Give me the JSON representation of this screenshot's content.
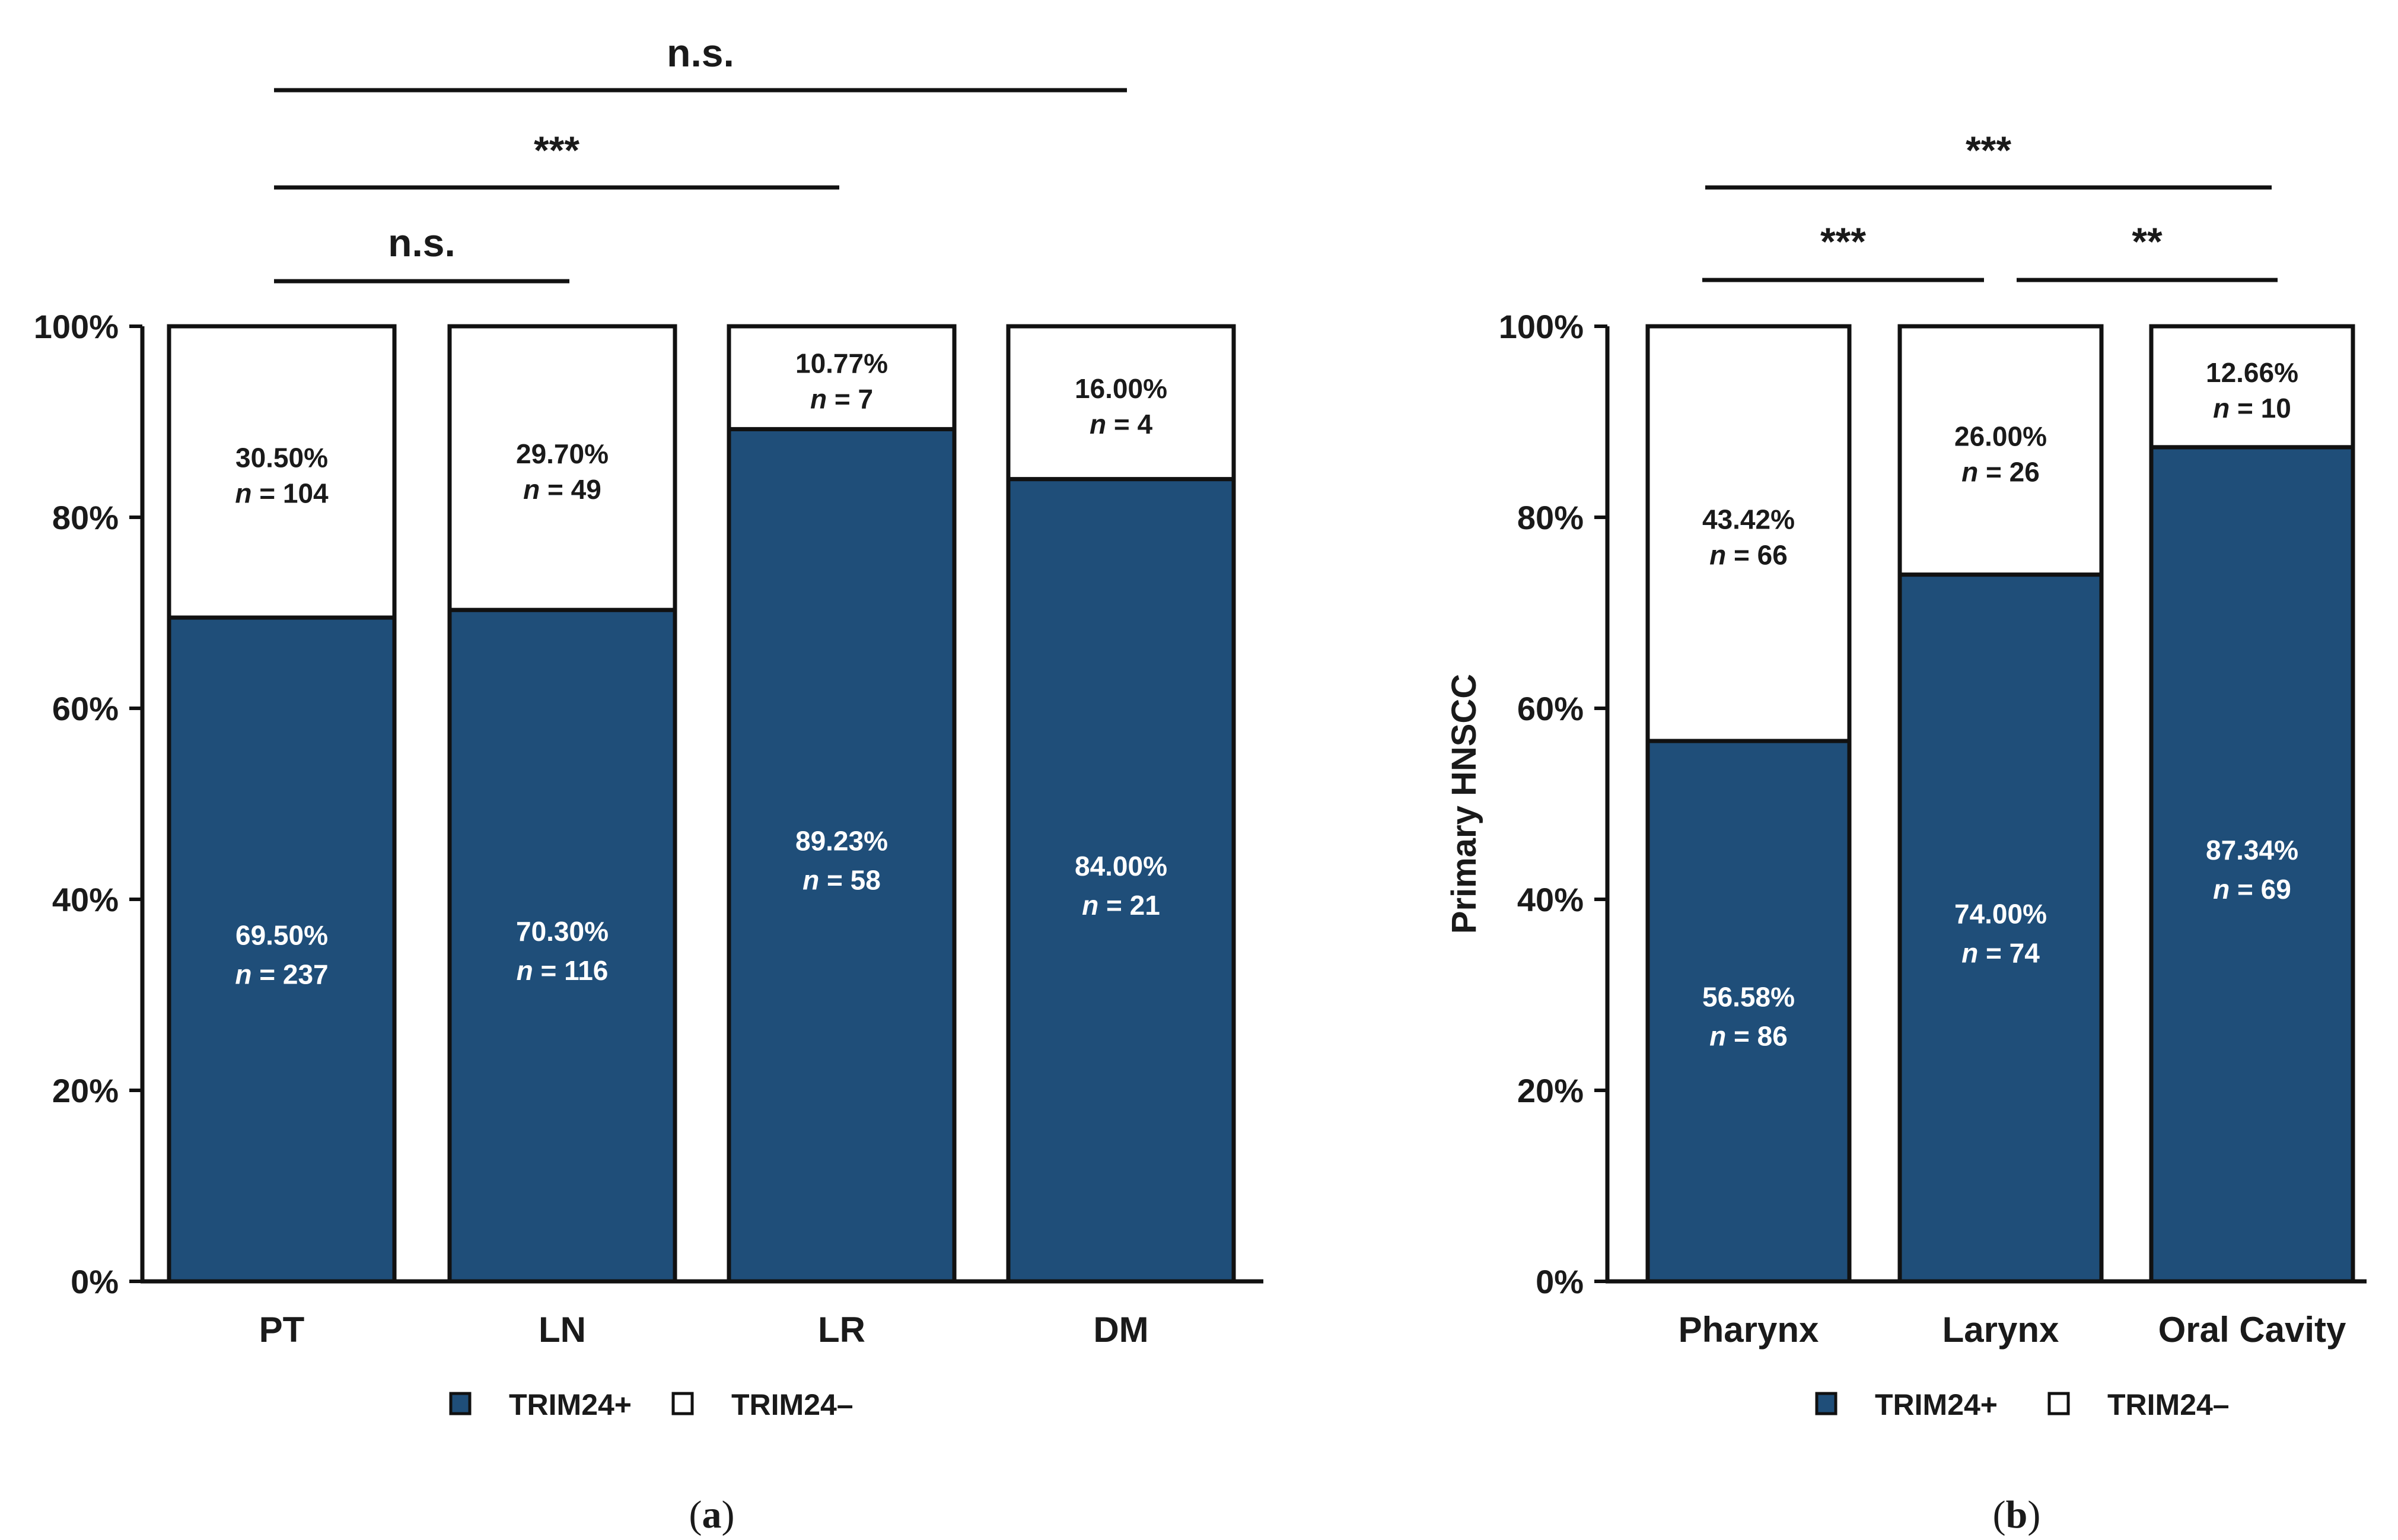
{
  "colors": {
    "positive": "#1f4e79",
    "negative": "#ffffff",
    "stroke": "#111111",
    "text_on_dark": "#ffffff",
    "text_on_light": "#1a1a1a"
  },
  "chart_data": [
    {
      "type": "bar",
      "stacked": true,
      "panel_label": "a",
      "ylabel": "",
      "ylim": [
        0,
        100
      ],
      "yticks": [
        "0%",
        "20%",
        "40%",
        "60%",
        "80%",
        "100%"
      ],
      "categories": [
        "PT",
        "LN",
        "LR",
        "DM"
      ],
      "series": [
        {
          "name": "TRIM24+",
          "values": [
            69.5,
            70.3,
            89.23,
            84.0
          ],
          "pct_labels": [
            "69.50%",
            "70.30%",
            "89.23%",
            "84.00%"
          ],
          "n_labels": [
            "= 237",
            "= 116",
            "= 58",
            "= 21"
          ]
        },
        {
          "name": "TRIM24–",
          "values": [
            30.5,
            29.7,
            10.77,
            16.0
          ],
          "pct_labels": [
            "30.50%",
            "29.70%",
            "10.77%",
            "16.00%"
          ],
          "n_labels": [
            "= 104",
            "= 49",
            "= 7",
            "= 4"
          ]
        }
      ],
      "n_prefix": "n",
      "comparisons": [
        {
          "from": "PT",
          "to": "DM",
          "label": "n.s."
        },
        {
          "from": "PT",
          "to": "LR",
          "label": "***"
        },
        {
          "from": "PT",
          "to": "LN",
          "label": "n.s."
        }
      ],
      "legend": [
        "TRIM24+",
        "TRIM24–"
      ]
    },
    {
      "type": "bar",
      "stacked": true,
      "panel_label": "b",
      "ylabel": "Primary HNSCC",
      "ylim": [
        0,
        100
      ],
      "yticks": [
        "0%",
        "20%",
        "40%",
        "60%",
        "80%",
        "100%"
      ],
      "categories": [
        "Pharynx",
        "Larynx",
        "Oral Cavity"
      ],
      "series": [
        {
          "name": "TRIM24+",
          "values": [
            56.58,
            74.0,
            87.34
          ],
          "pct_labels": [
            "56.58%",
            "74.00%",
            "87.34%"
          ],
          "n_labels": [
            "= 86",
            "= 74",
            "= 69"
          ]
        },
        {
          "name": "TRIM24–",
          "values": [
            43.42,
            26.0,
            12.66
          ],
          "pct_labels": [
            "43.42%",
            "26.00%",
            "12.66%"
          ],
          "n_labels": [
            "= 66",
            "= 26",
            "= 10"
          ]
        }
      ],
      "n_prefix": "n",
      "comparisons": [
        {
          "from": "Pharynx",
          "to": "Oral Cavity",
          "label": "***"
        },
        {
          "from": "Pharynx",
          "to": "Larynx",
          "label": "***"
        },
        {
          "from": "Larynx",
          "to": "Oral Cavity",
          "label": "**"
        }
      ],
      "legend": [
        "TRIM24+",
        "TRIM24–"
      ]
    }
  ]
}
